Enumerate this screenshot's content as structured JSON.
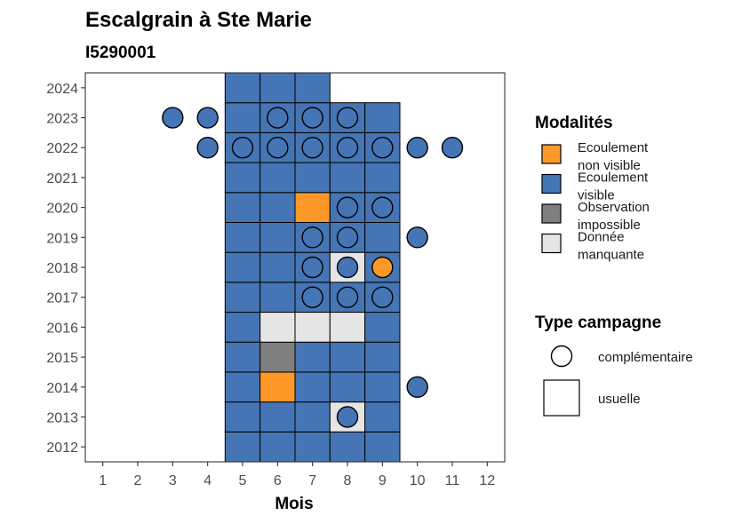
{
  "chart_data": {
    "type": "heatmap",
    "title": "Escalgrain à Ste Marie",
    "subtitle": "I5290001",
    "xlabel": "Mois",
    "x_ticks": [
      1,
      2,
      3,
      4,
      5,
      6,
      7,
      8,
      9,
      10,
      11,
      12
    ],
    "y_ticks": [
      2012,
      2013,
      2014,
      2015,
      2016,
      2017,
      2018,
      2019,
      2020,
      2021,
      2022,
      2023,
      2024
    ],
    "xlim": [
      0.5,
      12.5
    ],
    "ylim": [
      2011.5,
      2024.5
    ],
    "grid": false,
    "legend_position": "right",
    "colors": {
      "Ecoulement non visible": "#FE9929",
      "Ecoulement visible": "#4575B4",
      "Observation impossible": "#7F7F7F",
      "Donnée manquante": "#E5E5E5"
    },
    "legend": {
      "modalites_title": "Modalités",
      "modalites": [
        {
          "key": "Ecoulement non visible",
          "lines": [
            "Ecoulement",
            "non visible"
          ]
        },
        {
          "key": "Ecoulement visible",
          "lines": [
            "Ecoulement",
            "visible"
          ]
        },
        {
          "key": "Observation impossible",
          "lines": [
            "Observation",
            "impossible"
          ]
        },
        {
          "key": "Donnée manquante",
          "lines": [
            "Donnée",
            "manquante"
          ]
        }
      ],
      "type_title": "Type campagne",
      "types": [
        {
          "key": "complementaire",
          "label": "complémentaire",
          "shape": "circle"
        },
        {
          "key": "usuelle",
          "label": "usuelle",
          "shape": "square"
        }
      ]
    },
    "usuelle": [
      {
        "year": 2012,
        "months": [
          5,
          6,
          7,
          8,
          9
        ],
        "values": [
          "Ecoulement visible",
          "Ecoulement visible",
          "Ecoulement visible",
          "Ecoulement visible",
          "Ecoulement visible"
        ]
      },
      {
        "year": 2013,
        "months": [
          5,
          6,
          7,
          8,
          9
        ],
        "values": [
          "Ecoulement visible",
          "Ecoulement visible",
          "Ecoulement visible",
          "Donnée manquante",
          "Ecoulement visible"
        ]
      },
      {
        "year": 2014,
        "months": [
          5,
          6,
          7,
          8,
          9
        ],
        "values": [
          "Ecoulement visible",
          "Ecoulement non visible",
          "Ecoulement visible",
          "Ecoulement visible",
          "Ecoulement visible"
        ]
      },
      {
        "year": 2015,
        "months": [
          5,
          6,
          7,
          8,
          9
        ],
        "values": [
          "Ecoulement visible",
          "Observation impossible",
          "Ecoulement visible",
          "Ecoulement visible",
          "Ecoulement visible"
        ]
      },
      {
        "year": 2016,
        "months": [
          5,
          6,
          7,
          8,
          9
        ],
        "values": [
          "Ecoulement visible",
          "Donnée manquante",
          "Donnée manquante",
          "Donnée manquante",
          "Ecoulement visible"
        ]
      },
      {
        "year": 2017,
        "months": [
          5,
          6,
          7,
          8,
          9
        ],
        "values": [
          "Ecoulement visible",
          "Ecoulement visible",
          "Ecoulement visible",
          "Ecoulement visible",
          "Ecoulement visible"
        ]
      },
      {
        "year": 2018,
        "months": [
          5,
          6,
          7,
          8,
          9
        ],
        "values": [
          "Ecoulement visible",
          "Ecoulement visible",
          "Ecoulement visible",
          "Donnée manquante",
          "Ecoulement visible"
        ]
      },
      {
        "year": 2019,
        "months": [
          5,
          6,
          7,
          8,
          9
        ],
        "values": [
          "Ecoulement visible",
          "Ecoulement visible",
          "Ecoulement visible",
          "Ecoulement visible",
          "Ecoulement visible"
        ]
      },
      {
        "year": 2020,
        "months": [
          5,
          6,
          7,
          8,
          9
        ],
        "values": [
          "Ecoulement visible",
          "Ecoulement visible",
          "Ecoulement non visible",
          "Ecoulement visible",
          "Ecoulement visible"
        ]
      },
      {
        "year": 2021,
        "months": [
          5,
          6,
          7,
          8,
          9
        ],
        "values": [
          "Ecoulement visible",
          "Ecoulement visible",
          "Ecoulement visible",
          "Ecoulement visible",
          "Ecoulement visible"
        ]
      },
      {
        "year": 2022,
        "months": [
          5,
          6,
          7,
          8,
          9
        ],
        "values": [
          "Ecoulement visible",
          "Ecoulement visible",
          "Ecoulement visible",
          "Ecoulement visible",
          "Ecoulement visible"
        ]
      },
      {
        "year": 2023,
        "months": [
          5,
          6,
          7,
          8,
          9
        ],
        "values": [
          "Ecoulement visible",
          "Ecoulement visible",
          "Ecoulement visible",
          "Ecoulement visible",
          "Ecoulement visible"
        ]
      },
      {
        "year": 2024,
        "months": [
          5,
          6,
          7
        ],
        "values": [
          "Ecoulement visible",
          "Ecoulement visible",
          "Ecoulement visible"
        ]
      }
    ],
    "complementaire": [
      {
        "year": 2013,
        "month": 8,
        "value": "Ecoulement visible"
      },
      {
        "year": 2014,
        "month": 10,
        "value": "Ecoulement visible"
      },
      {
        "year": 2017,
        "month": 7,
        "value": "Ecoulement visible"
      },
      {
        "year": 2017,
        "month": 8,
        "value": "Ecoulement visible"
      },
      {
        "year": 2017,
        "month": 9,
        "value": "Ecoulement visible"
      },
      {
        "year": 2018,
        "month": 7,
        "value": "Ecoulement visible"
      },
      {
        "year": 2018,
        "month": 8,
        "value": "Ecoulement visible"
      },
      {
        "year": 2018,
        "month": 9,
        "value": "Ecoulement non visible"
      },
      {
        "year": 2019,
        "month": 7,
        "value": "Ecoulement visible"
      },
      {
        "year": 2019,
        "month": 8,
        "value": "Ecoulement visible"
      },
      {
        "year": 2019,
        "month": 10,
        "value": "Ecoulement visible"
      },
      {
        "year": 2020,
        "month": 8,
        "value": "Ecoulement visible"
      },
      {
        "year": 2020,
        "month": 9,
        "value": "Ecoulement visible"
      },
      {
        "year": 2022,
        "month": 4,
        "value": "Ecoulement visible"
      },
      {
        "year": 2022,
        "month": 5,
        "value": "Ecoulement visible"
      },
      {
        "year": 2022,
        "month": 6,
        "value": "Ecoulement visible"
      },
      {
        "year": 2022,
        "month": 7,
        "value": "Ecoulement visible"
      },
      {
        "year": 2022,
        "month": 8,
        "value": "Ecoulement visible"
      },
      {
        "year": 2022,
        "month": 9,
        "value": "Ecoulement visible"
      },
      {
        "year": 2022,
        "month": 10,
        "value": "Ecoulement visible"
      },
      {
        "year": 2022,
        "month": 11,
        "value": "Ecoulement visible"
      },
      {
        "year": 2023,
        "month": 3,
        "value": "Ecoulement visible"
      },
      {
        "year": 2023,
        "month": 4,
        "value": "Ecoulement visible"
      },
      {
        "year": 2023,
        "month": 6,
        "value": "Ecoulement visible"
      },
      {
        "year": 2023,
        "month": 7,
        "value": "Ecoulement visible"
      },
      {
        "year": 2023,
        "month": 8,
        "value": "Ecoulement visible"
      }
    ]
  }
}
